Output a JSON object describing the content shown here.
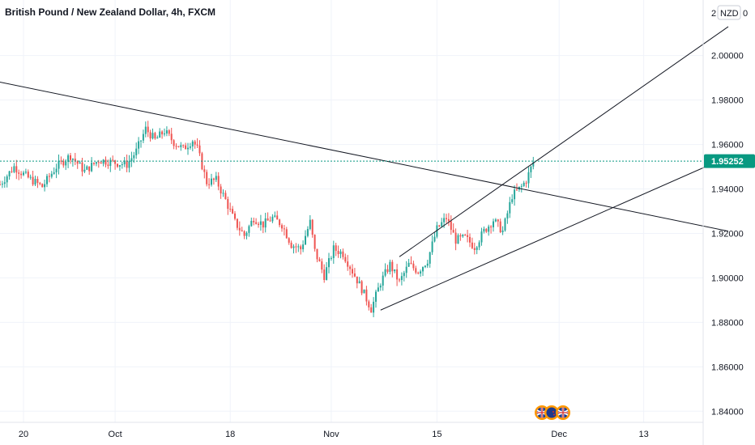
{
  "chart_data": {
    "type": "candlestick",
    "title": "British Pound / New Zealand Dollar, 4h, FXCM",
    "currency_badge": "NZD",
    "y_top_partial": "2",
    "y_top_partial_right": "0",
    "ylim": [
      1.835,
      2.025
    ],
    "y_ticks": [
      "2.00000",
      "1.98000",
      "1.96000",
      "1.94000",
      "1.92000",
      "1.90000",
      "1.88000",
      "1.86000",
      "1.84000"
    ],
    "x_ticks": [
      "20",
      "Oct",
      "18",
      "Nov",
      "15",
      "Dec",
      "13"
    ],
    "last_price": 1.95252,
    "last_price_label": "1.95252",
    "colors": {
      "up": "#26a69a",
      "down": "#ef5350",
      "last_price": "#089981",
      "trendline": "#131722",
      "grid": "#f0f3fa"
    },
    "price_path": [
      {
        "i": 0,
        "p": 1.942
      },
      {
        "i": 6,
        "p": 1.95
      },
      {
        "i": 12,
        "p": 1.945
      },
      {
        "i": 18,
        "p": 1.941
      },
      {
        "i": 24,
        "p": 1.95
      },
      {
        "i": 30,
        "p": 1.955
      },
      {
        "i": 36,
        "p": 1.948
      },
      {
        "i": 42,
        "p": 1.953
      },
      {
        "i": 48,
        "p": 1.952
      },
      {
        "i": 54,
        "p": 1.951
      },
      {
        "i": 58,
        "p": 1.957
      },
      {
        "i": 62,
        "p": 1.967
      },
      {
        "i": 66,
        "p": 1.962
      },
      {
        "i": 70,
        "p": 1.966
      },
      {
        "i": 74,
        "p": 1.961
      },
      {
        "i": 78,
        "p": 1.958
      },
      {
        "i": 82,
        "p": 1.962
      },
      {
        "i": 84,
        "p": 1.958
      },
      {
        "i": 88,
        "p": 1.943
      },
      {
        "i": 92,
        "p": 1.944
      },
      {
        "i": 96,
        "p": 1.935
      },
      {
        "i": 100,
        "p": 1.925
      },
      {
        "i": 104,
        "p": 1.919
      },
      {
        "i": 108,
        "p": 1.927
      },
      {
        "i": 112,
        "p": 1.924
      },
      {
        "i": 116,
        "p": 1.927
      },
      {
        "i": 120,
        "p": 1.924
      },
      {
        "i": 124,
        "p": 1.915
      },
      {
        "i": 128,
        "p": 1.913
      },
      {
        "i": 132,
        "p": 1.925
      },
      {
        "i": 134,
        "p": 1.912
      },
      {
        "i": 138,
        "p": 1.901
      },
      {
        "i": 142,
        "p": 1.913
      },
      {
        "i": 146,
        "p": 1.911
      },
      {
        "i": 150,
        "p": 1.903
      },
      {
        "i": 154,
        "p": 1.895
      },
      {
        "i": 158,
        "p": 1.886
      },
      {
        "i": 162,
        "p": 1.898
      },
      {
        "i": 166,
        "p": 1.906
      },
      {
        "i": 170,
        "p": 1.898
      },
      {
        "i": 174,
        "p": 1.906
      },
      {
        "i": 178,
        "p": 1.903
      },
      {
        "i": 182,
        "p": 1.908
      },
      {
        "i": 186,
        "p": 1.922
      },
      {
        "i": 190,
        "p": 1.927
      },
      {
        "i": 194,
        "p": 1.917
      },
      {
        "i": 198,
        "p": 1.918
      },
      {
        "i": 202,
        "p": 1.914
      },
      {
        "i": 206,
        "p": 1.921
      },
      {
        "i": 210,
        "p": 1.926
      },
      {
        "i": 214,
        "p": 1.921
      },
      {
        "i": 218,
        "p": 1.937
      },
      {
        "i": 222,
        "p": 1.941
      },
      {
        "i": 224,
        "p": 1.944
      },
      {
        "i": 227,
        "p": 1.952
      }
    ],
    "total_bars": 228,
    "bar_spacing_days": 0.1667,
    "trendlines": [
      {
        "from": [
          -2,
          1.9885
        ],
        "to": [
          310,
          1.921
        ]
      },
      {
        "from": [
          162,
          1.8855
        ],
        "to": [
          310,
          1.9545
        ]
      },
      {
        "from": [
          170,
          1.9095
        ],
        "to": [
          310,
          2.013
        ]
      }
    ]
  }
}
